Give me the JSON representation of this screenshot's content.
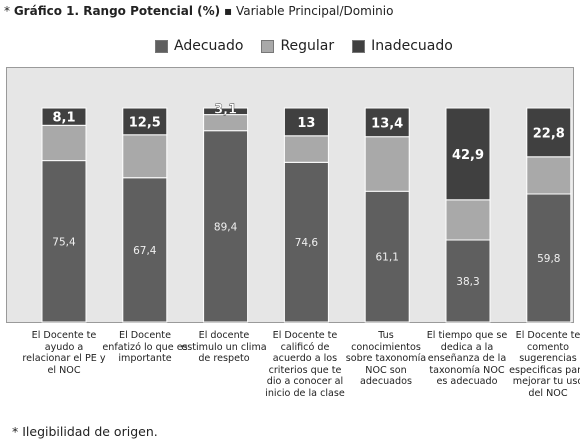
{
  "header": {
    "bullet": "*",
    "title_bold": "Gráfico 1. Rango Potencial (%)",
    "separator": "▪",
    "title_rest": "Variable Principal/Dominio"
  },
  "legend": [
    {
      "label": "Adecuado",
      "color": "#5f5f5f"
    },
    {
      "label": "Regular",
      "color": "#a9a9a9"
    },
    {
      "label": "Inadecuado",
      "color": "#404040"
    }
  ],
  "footnote": "* Ilegibilidad de origen.",
  "chart_data": {
    "type": "bar",
    "stacked": true,
    "ylim": [
      0,
      100
    ],
    "categories": [
      "El Docente te ayudo a relacionar el PE y el NOC",
      "El Docente enfatizó lo que es importante",
      "El docente estimulo un clima de respeto",
      "El Docente te calificó de acuerdo a los criterios que te dio a conocer al inicio de la clase",
      "Tus conocimientos sobre taxonomía NOC son adecuados",
      "El tiempo que se dedica a la enseñanza de la taxonomía NOC es adecuado",
      "El Docente te comento sugerencias especificas para mejorar tu uso del NOC"
    ],
    "series": [
      {
        "name": "Adecuado",
        "values": [
          75.4,
          67.4,
          89.4,
          74.6,
          61.1,
          38.3,
          59.8
        ],
        "labels": [
          "75,4",
          "67,4",
          "89,4",
          "74,6",
          "61,1",
          "38,3",
          "59,8"
        ]
      },
      {
        "name": "Regular",
        "values": [
          16.5,
          20.1,
          7.5,
          12.4,
          25.5,
          18.8,
          17.4
        ],
        "labels": [
          "",
          "",
          "",
          "",
          "",
          "",
          ""
        ]
      },
      {
        "name": "Inadecuado",
        "values": [
          8.1,
          12.5,
          3.1,
          13,
          13.4,
          42.9,
          22.8
        ],
        "labels": [
          "8,1",
          "12,5",
          "3,1",
          "13",
          "13,4",
          "42,9",
          "22,8"
        ]
      }
    ]
  }
}
